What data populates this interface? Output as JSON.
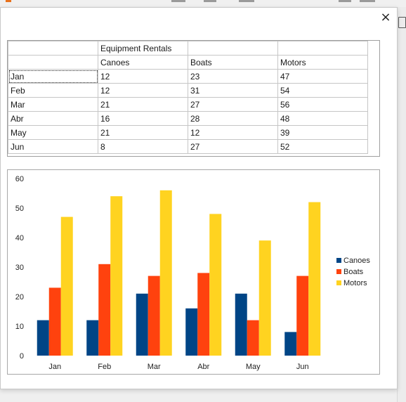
{
  "dialog": {
    "close_glyph": "×"
  },
  "table": {
    "header_row_1": [
      "",
      "Equipment Rentals",
      "",
      ""
    ],
    "header_row_2": [
      "",
      "Canoes",
      "Boats",
      "Motors"
    ],
    "rows": [
      [
        "Jan",
        "12",
        "23",
        "47"
      ],
      [
        "Feb",
        "12",
        "31",
        "54"
      ],
      [
        "Mar",
        "21",
        "27",
        "56"
      ],
      [
        "Abr",
        "16",
        "28",
        "48"
      ],
      [
        "May",
        "21",
        "12",
        "39"
      ],
      [
        "Jun",
        "8",
        "27",
        "52"
      ]
    ]
  },
  "chart_data": {
    "type": "bar",
    "categories": [
      "Jan",
      "Feb",
      "Mar",
      "Abr",
      "May",
      "Jun"
    ],
    "series": [
      {
        "name": "Canoes",
        "values": [
          12,
          12,
          21,
          16,
          21,
          8
        ],
        "color": "#004586"
      },
      {
        "name": "Boats",
        "values": [
          23,
          31,
          27,
          28,
          12,
          27
        ],
        "color": "#ff420e"
      },
      {
        "name": "Motors",
        "values": [
          47,
          54,
          56,
          48,
          39,
          52
        ],
        "color": "#ffd320"
      }
    ],
    "ylim": [
      0,
      60
    ],
    "yticks": [
      0,
      10,
      20,
      30,
      40,
      50,
      60
    ],
    "grid": false,
    "legend": "right"
  }
}
